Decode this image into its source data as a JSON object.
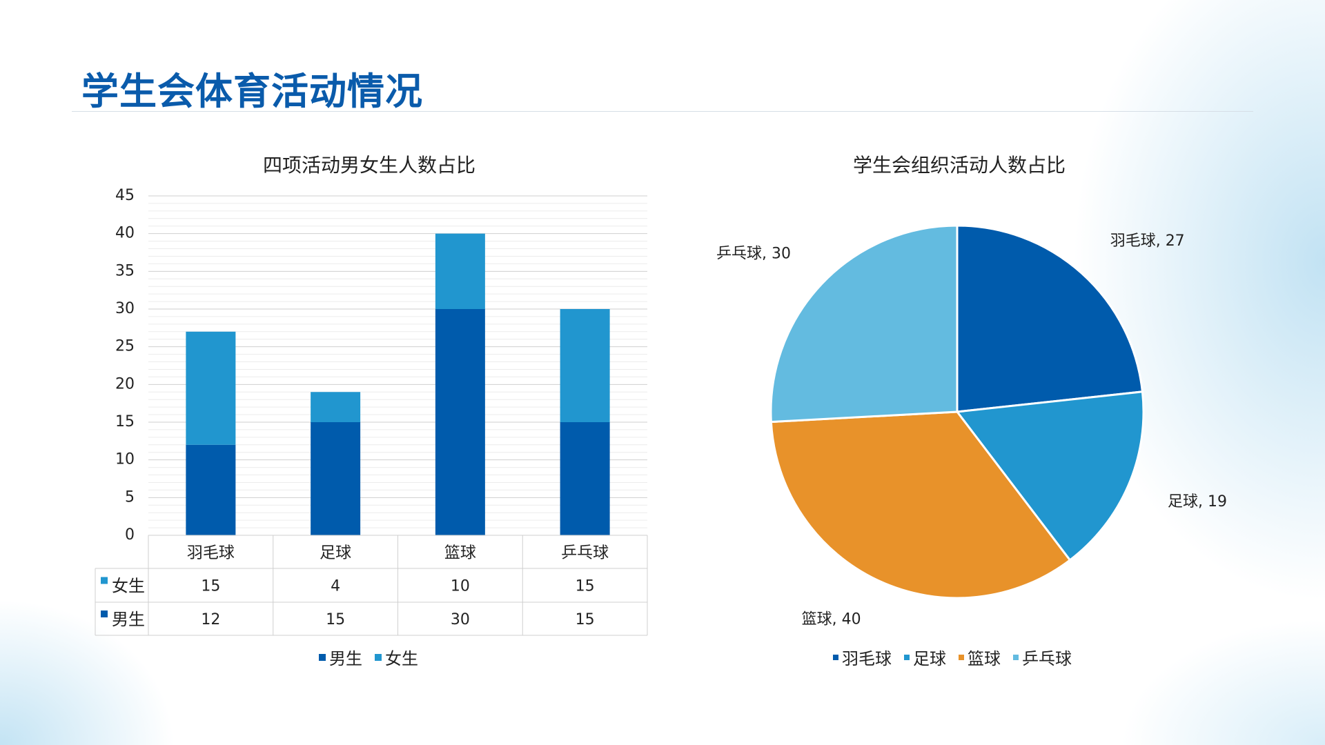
{
  "page": {
    "title": "学生会体育活动情况"
  },
  "colors": {
    "male": "#005bac",
    "female": "#2196cf",
    "badminton": "#005bac",
    "football": "#2196cf",
    "basketball": "#e8922a",
    "pingpong": "#63bbe0"
  },
  "chart_data": [
    {
      "type": "bar",
      "stacked": true,
      "title": "四项活动男女生人数占比",
      "categories": [
        "羽毛球",
        "足球",
        "篮球",
        "乒乓球"
      ],
      "series": [
        {
          "name": "男生",
          "values": [
            12,
            15,
            30,
            15
          ]
        },
        {
          "name": "女生",
          "values": [
            15,
            4,
            10,
            15
          ]
        }
      ],
      "ylim": [
        0,
        45
      ],
      "yticks": [
        0,
        5,
        10,
        15,
        20,
        25,
        30,
        35,
        40,
        45
      ],
      "grid": true,
      "data_table": true,
      "legend": "bottom"
    },
    {
      "type": "pie",
      "title": "学生会组织活动人数占比",
      "labels": [
        "羽毛球",
        "足球",
        "篮球",
        "乒乓球"
      ],
      "values": [
        27,
        19,
        40,
        30
      ],
      "data_labels": [
        "羽毛球, 27",
        "足球, 19",
        "篮球, 40",
        "乒乓球, 30"
      ],
      "legend": "bottom"
    }
  ]
}
